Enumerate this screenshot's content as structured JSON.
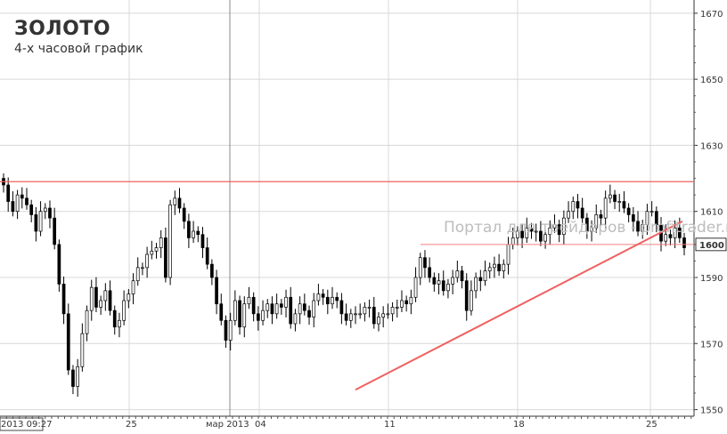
{
  "title": "ЗОЛОТО",
  "subtitle": "4-х часовой график",
  "watermark": "Портал для трейдеров - profitrader.ru",
  "chart_data": {
    "type": "candlestick",
    "ylim": [
      1548,
      1674
    ],
    "y_ticks": [
      1550,
      1570,
      1590,
      1610,
      1630,
      1650,
      1670
    ],
    "y_tick_labels": [
      "1550",
      "1570",
      "1590",
      "1610",
      "1630",
      "1650",
      "1670"
    ],
    "current_price_label": "1600",
    "x_labels": [
      "2013 09:27",
      "25",
      "мар 2013",
      "04",
      "11",
      "18",
      "25"
    ],
    "grid": true,
    "resistance_level": 1619,
    "support_level": 1600,
    "trendline": {
      "from_price": 1556,
      "to_price": 1607
    },
    "candles": [
      1618,
      1613,
      1610,
      1615,
      1614,
      1612,
      1609,
      1604,
      1610,
      1611,
      1608,
      1600,
      1588,
      1579,
      1562,
      1557,
      1563,
      1573,
      1580,
      1587,
      1581,
      1583,
      1586,
      1580,
      1575,
      1577,
      1583,
      1585,
      1589,
      1593,
      1593,
      1597,
      1598,
      1599,
      1602,
      1590,
      1612,
      1614,
      1611,
      1607,
      1602,
      1604,
      1603,
      1599,
      1594,
      1590,
      1582,
      1577,
      1571,
      1577,
      1583,
      1575,
      1582,
      1584,
      1579,
      1577,
      1580,
      1582,
      1579,
      1582,
      1581,
      1584,
      1576,
      1579,
      1582,
      1580,
      1578,
      1583,
      1585,
      1584,
      1582,
      1584,
      1583,
      1579,
      1577,
      1579,
      1579,
      1579,
      1581,
      1581,
      1576,
      1578,
      1579,
      1579,
      1581,
      1581,
      1583,
      1582,
      1584,
      1590,
      1596,
      1593,
      1590,
      1588,
      1589,
      1586,
      1588,
      1590,
      1592,
      1589,
      1580,
      1586,
      1590,
      1589,
      1592,
      1593,
      1594,
      1592,
      1594,
      1600,
      1602,
      1604,
      1602,
      1605,
      1604,
      1604,
      1601,
      1603,
      1605,
      1606,
      1603,
      1608,
      1610,
      1613,
      1611,
      1608,
      1604,
      1605,
      1609,
      1608,
      1614,
      1615,
      1613,
      1613,
      1611,
      1609,
      1607,
      1604,
      1606,
      1610,
      1610,
      1606,
      1601,
      1603,
      1602,
      1605,
      1602,
      1599
    ]
  }
}
